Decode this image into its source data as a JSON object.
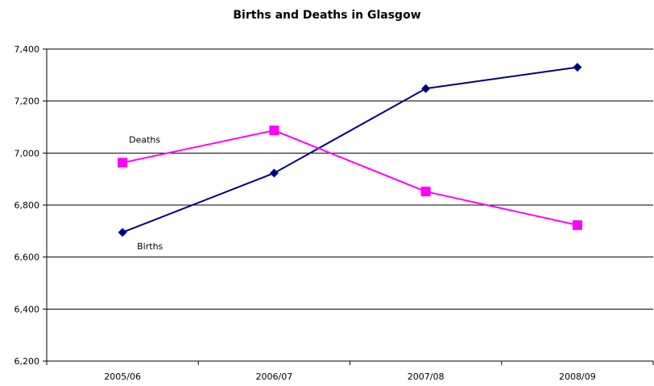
{
  "chart_data": {
    "type": "line",
    "title": "Births and Deaths in Glasgow",
    "categories": [
      "2005/06",
      "2006/07",
      "2007/08",
      "2008/09"
    ],
    "y_ticks": [
      "6,200",
      "6,400",
      "6,600",
      "6,800",
      "7,000",
      "7,200",
      "7,400"
    ],
    "ylim": [
      6200,
      7400
    ],
    "grid": true,
    "series": [
      {
        "name": "Births",
        "marker": "diamond",
        "color": "#000080",
        "values": [
          6695,
          6923,
          7248,
          7330
        ]
      },
      {
        "name": "Deaths",
        "marker": "square",
        "color": "#FF00FF",
        "values": [
          6963,
          7087,
          6852,
          6723
        ]
      }
    ]
  }
}
